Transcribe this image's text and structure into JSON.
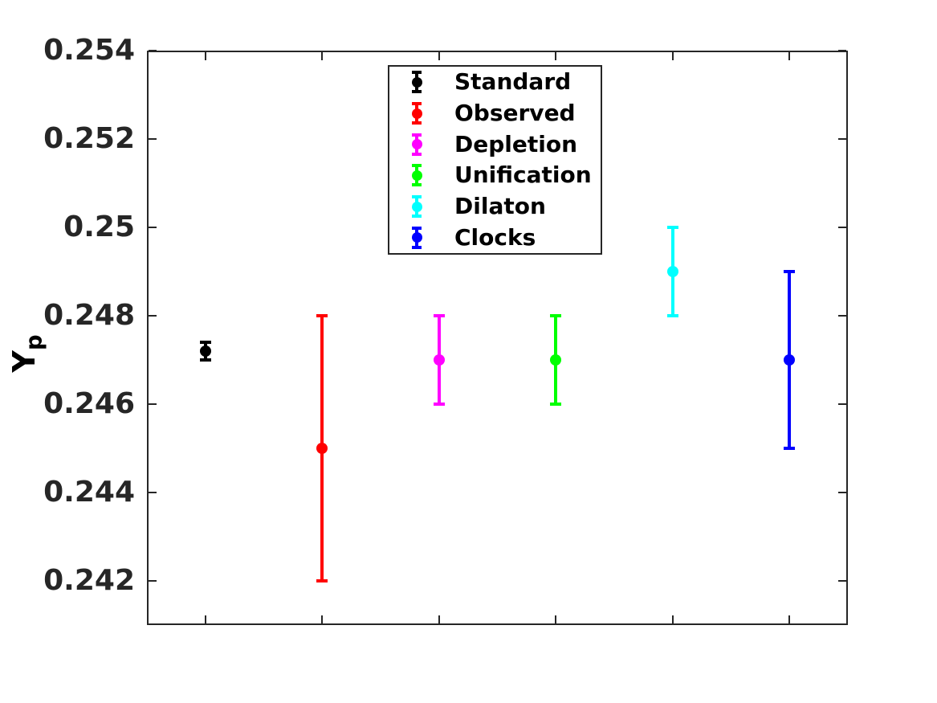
{
  "figure": {
    "background_color": "#ffffff",
    "axis_color": "#262626",
    "label_color": "#000000"
  },
  "chart_data": {
    "type": "scatter",
    "subtype": "errorbar",
    "title": "",
    "xlabel": "",
    "ylabel": "Y",
    "ylabel_subscript": "p",
    "ylim": [
      0.241,
      0.254
    ],
    "xlim": [
      0.5,
      6.5
    ],
    "grid": false,
    "box": true,
    "yticks": [
      {
        "value": 0.254,
        "label": "0.254"
      },
      {
        "value": 0.252,
        "label": "0.252"
      },
      {
        "value": 0.25,
        "label": "0.25"
      },
      {
        "value": 0.248,
        "label": "0.248"
      },
      {
        "value": 0.246,
        "label": "0.246"
      },
      {
        "value": 0.244,
        "label": "0.244"
      },
      {
        "value": 0.242,
        "label": "0.242"
      }
    ],
    "xticks": [
      1,
      2,
      3,
      4,
      5,
      6
    ],
    "xtick_labels": [
      "",
      "",
      "",
      "",
      "",
      ""
    ],
    "legend_position": "inside-upper-center",
    "series": [
      {
        "name": "Standard",
        "color": "#000000",
        "x": 1,
        "y": 0.2472,
        "yerr": 0.0002
      },
      {
        "name": "Observed",
        "color": "#FF0000",
        "x": 2,
        "y": 0.245,
        "yerr": 0.003
      },
      {
        "name": "Depletion",
        "color": "#FF00FF",
        "x": 3,
        "y": 0.247,
        "yerr": 0.001
      },
      {
        "name": "Unification",
        "color": "#00FF00",
        "x": 4,
        "y": 0.247,
        "yerr": 0.001
      },
      {
        "name": "Dilaton",
        "color": "#00FFFF",
        "x": 5,
        "y": 0.249,
        "yerr": 0.001
      },
      {
        "name": "Clocks",
        "color": "#0000FF",
        "x": 6,
        "y": 0.247,
        "yerr": 0.002
      }
    ]
  }
}
